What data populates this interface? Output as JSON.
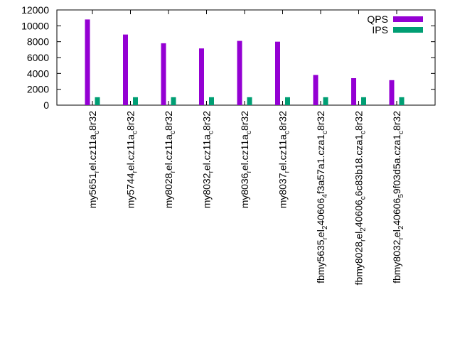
{
  "chart_data": {
    "type": "bar",
    "categories": [
      "my5651_rel.cz11a_c8r32",
      "my5744_rel.cz11a_c8r32",
      "my8028_rel.cz11a_c8r32",
      "my8032_rel.cz11a_c8r32",
      "my8036_rel.cz11a_c8r32",
      "my8037_rel.cz11a_c8r32",
      "fbmy5635_rel_240606_4f3a57a1.cza1_c8r32",
      "fbmy8028_rel_240606_c6c83b18.cza1_c8r32",
      "fbmy8032_rel_240606_59f03d5a.cza1_c8r32"
    ],
    "series": [
      {
        "name": "QPS",
        "color": "#9400d3",
        "values": [
          10800,
          8900,
          7800,
          7150,
          8100,
          8000,
          3800,
          3400,
          3150
        ]
      },
      {
        "name": "IPS",
        "color": "#009e73",
        "values": [
          1000,
          1000,
          1000,
          1000,
          1000,
          1000,
          1000,
          1000,
          1000
        ]
      }
    ],
    "title": "",
    "xlabel": "",
    "ylabel": "",
    "ylim": [
      0,
      12000
    ],
    "yticks": [
      0,
      2000,
      4000,
      6000,
      8000,
      10000,
      12000
    ],
    "grid": false,
    "legend_position": "top-right"
  }
}
